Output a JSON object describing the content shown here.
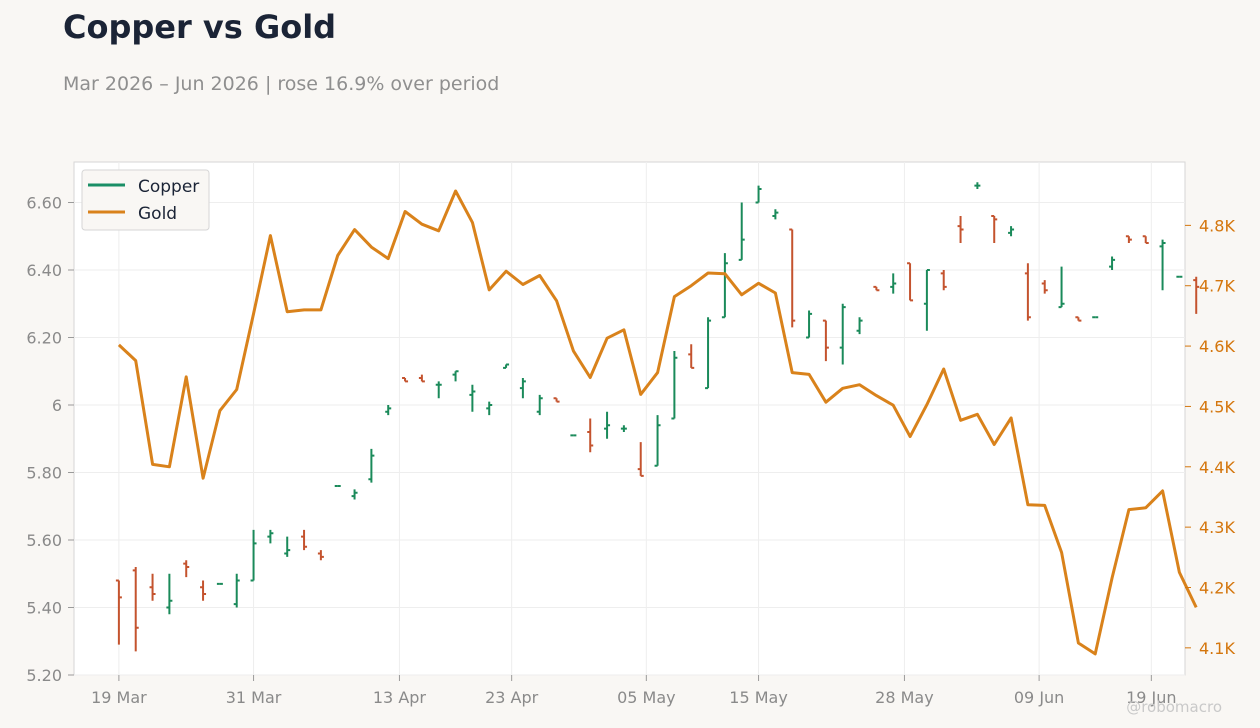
{
  "header": {
    "title": "Copper vs Gold",
    "subtitle": "Mar 2026 – Jun 2026 | rose 16.9% over period",
    "watermark": "@robomacro"
  },
  "colors": {
    "up": "#1a8a5a",
    "down": "#c4532e",
    "copper_legend": "#1a8f66",
    "gold": "#d9821b",
    "right_axis_text": "#d4760d"
  },
  "chart_data": {
    "type": "line",
    "x_start": "2026-03-19",
    "xlim": [
      "2026-03-15",
      "2026-06-22"
    ],
    "x_ticks": [
      {
        "date": "2026-03-19",
        "label": "19 Mar"
      },
      {
        "date": "2026-03-31",
        "label": "31 Mar"
      },
      {
        "date": "2026-04-13",
        "label": "13 Apr"
      },
      {
        "date": "2026-04-23",
        "label": "23 Apr"
      },
      {
        "date": "2026-05-05",
        "label": "05 May"
      },
      {
        "date": "2026-05-15",
        "label": "15 May"
      },
      {
        "date": "2026-05-28",
        "label": "28 May"
      },
      {
        "date": "2026-06-09",
        "label": "09 Jun"
      },
      {
        "date": "2026-06-19",
        "label": "19 Jun"
      }
    ],
    "left_axis": {
      "ylim": [
        5.2,
        6.72
      ],
      "ticks": [
        5.2,
        5.4,
        5.6,
        5.8,
        6.0,
        6.2,
        6.4,
        6.6
      ],
      "tick_labels": [
        "5.20",
        "5.40",
        "5.60",
        "5.80",
        "6",
        "6.20",
        "6.40",
        "6.60"
      ]
    },
    "right_axis": {
      "ylim": [
        4.055,
        4.905
      ],
      "unit_note": "thousands",
      "ticks": [
        4.1,
        4.2,
        4.3,
        4.4,
        4.5,
        4.6,
        4.7,
        4.8
      ],
      "tick_labels": [
        "4.1K",
        "4.2K",
        "4.3K",
        "4.4K",
        "4.5K",
        "4.6K",
        "4.7K",
        "4.8K"
      ]
    },
    "grid": true,
    "legend": {
      "position": "top-left",
      "entries": [
        "Copper",
        "Gold"
      ]
    },
    "series": [
      {
        "name": "Copper",
        "kind": "ohlc",
        "axis": "left",
        "ohlc": [
          [
            5.48,
            5.48,
            5.29,
            5.43
          ],
          [
            5.51,
            5.52,
            5.27,
            5.34
          ],
          [
            5.46,
            5.5,
            5.42,
            5.44
          ],
          [
            5.4,
            5.5,
            5.38,
            5.42
          ],
          [
            5.53,
            5.54,
            5.49,
            5.52
          ],
          [
            5.46,
            5.48,
            5.42,
            5.44
          ],
          [
            5.47,
            5.47,
            5.47,
            5.47
          ],
          [
            5.41,
            5.5,
            5.4,
            5.48
          ],
          [
            5.48,
            5.63,
            5.48,
            5.59
          ],
          [
            5.61,
            5.63,
            5.59,
            5.62
          ],
          [
            5.56,
            5.61,
            5.55,
            5.57
          ],
          [
            5.61,
            5.63,
            5.57,
            5.58
          ],
          [
            5.56,
            5.57,
            5.54,
            5.55
          ],
          [
            5.76,
            5.76,
            5.76,
            5.76
          ],
          [
            5.73,
            5.75,
            5.72,
            5.74
          ],
          [
            5.78,
            5.87,
            5.77,
            5.85
          ],
          [
            5.98,
            6.0,
            5.97,
            5.99
          ],
          [
            6.08,
            6.08,
            6.07,
            6.07
          ],
          [
            6.08,
            6.09,
            6.07,
            6.07
          ],
          [
            6.06,
            6.07,
            6.02,
            6.06
          ],
          [
            6.09,
            6.1,
            6.07,
            6.1
          ],
          [
            6.03,
            6.06,
            5.98,
            6.04
          ],
          [
            5.99,
            6.01,
            5.97,
            6.0
          ],
          [
            6.11,
            6.12,
            6.11,
            6.12
          ],
          [
            6.05,
            6.08,
            6.02,
            6.07
          ],
          [
            5.98,
            6.03,
            5.97,
            6.02
          ],
          [
            6.02,
            6.02,
            6.01,
            6.01
          ],
          [
            5.91,
            5.91,
            5.91,
            5.91
          ],
          [
            5.92,
            5.96,
            5.86,
            5.88
          ],
          [
            5.93,
            5.98,
            5.9,
            5.94
          ],
          [
            5.93,
            5.94,
            5.92,
            5.93
          ],
          [
            5.81,
            5.89,
            5.79,
            5.79
          ],
          [
            5.82,
            5.97,
            5.82,
            5.94
          ],
          [
            5.96,
            6.16,
            5.96,
            6.14
          ],
          [
            6.15,
            6.18,
            6.11,
            6.11
          ],
          [
            6.05,
            6.26,
            6.05,
            6.25
          ],
          [
            6.26,
            6.45,
            6.26,
            6.42
          ],
          [
            6.43,
            6.6,
            6.43,
            6.49
          ],
          [
            6.6,
            6.65,
            6.6,
            6.64
          ],
          [
            6.56,
            6.58,
            6.55,
            6.57
          ],
          [
            6.52,
            6.52,
            6.23,
            6.25
          ],
          [
            6.2,
            6.28,
            6.2,
            6.27
          ],
          [
            6.25,
            6.25,
            6.13,
            6.17
          ],
          [
            6.17,
            6.3,
            6.12,
            6.29
          ],
          [
            6.22,
            6.26,
            6.21,
            6.25
          ],
          [
            6.35,
            6.35,
            6.34,
            6.34
          ],
          [
            6.35,
            6.39,
            6.33,
            6.36
          ],
          [
            6.42,
            6.42,
            6.31,
            6.31
          ],
          [
            6.3,
            6.4,
            6.22,
            6.4
          ],
          [
            6.39,
            6.4,
            6.34,
            6.35
          ],
          [
            6.53,
            6.56,
            6.48,
            6.52
          ],
          [
            6.65,
            6.66,
            6.64,
            6.65
          ],
          [
            6.56,
            6.56,
            6.48,
            6.55
          ],
          [
            6.51,
            6.53,
            6.5,
            6.52
          ],
          [
            6.39,
            6.42,
            6.25,
            6.26
          ],
          [
            6.36,
            6.37,
            6.33,
            6.34
          ],
          [
            6.29,
            6.41,
            6.29,
            6.3
          ],
          [
            6.26,
            6.26,
            6.25,
            6.25
          ],
          [
            6.26,
            6.26,
            6.26,
            6.26
          ],
          [
            6.41,
            6.44,
            6.4,
            6.43
          ],
          [
            6.5,
            6.5,
            6.48,
            6.49
          ],
          [
            6.5,
            6.5,
            6.48,
            6.48
          ],
          [
            6.47,
            6.49,
            6.34,
            6.48
          ],
          [
            6.38,
            6.38,
            6.38,
            6.38
          ],
          [
            6.37,
            6.38,
            6.27,
            6.35
          ]
        ]
      },
      {
        "name": "Gold",
        "kind": "line",
        "axis": "right",
        "values": [
          4.602,
          4.576,
          4.404,
          4.4,
          4.549,
          4.381,
          4.493,
          4.528,
          4.654,
          4.783,
          4.657,
          4.66,
          4.66,
          4.75,
          4.793,
          4.764,
          4.745,
          4.823,
          4.802,
          4.791,
          4.857,
          4.805,
          4.693,
          4.724,
          4.702,
          4.717,
          4.675,
          4.592,
          4.548,
          4.613,
          4.627,
          4.52,
          4.556,
          4.682,
          4.7,
          4.721,
          4.72,
          4.685,
          4.704,
          4.688,
          4.556,
          4.553,
          4.507,
          4.53,
          4.536,
          4.518,
          4.502,
          4.45,
          4.503,
          4.562,
          4.477,
          4.487,
          4.437,
          4.481,
          4.337,
          4.336,
          4.258,
          4.108,
          4.09,
          4.216,
          4.329,
          4.332,
          4.36,
          4.225,
          4.167
        ]
      }
    ]
  }
}
